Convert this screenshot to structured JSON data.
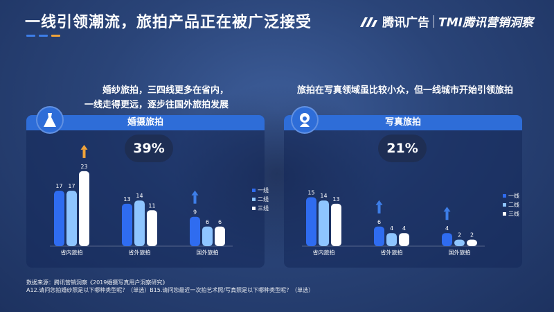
{
  "title": "一线引领潮流，旅拍产品正在被广泛接受",
  "brand": {
    "name": "腾讯广告",
    "sub": "TMI腾讯营销洞察"
  },
  "colors": {
    "tier1": "#2f6cf0",
    "tier2": "#8ec5ff",
    "tier3": "#ffffff",
    "accent_orange": "#f0a33a",
    "accent_blue": "#3d7ee8"
  },
  "left": {
    "headline_line1": "婚纱旅拍，三四线更多在省内，",
    "headline_line2": "一线走得更远，逐步往国外旅拍发展",
    "panel_title": "婚摄旅拍",
    "percent": "39%",
    "icon": "wedding-dress-icon"
  },
  "right": {
    "headline": "旅拍在写真领域虽比较小众，但一线城市开始引领旅拍",
    "panel_title": "写真旅拍",
    "percent": "21%",
    "icon": "portrait-icon"
  },
  "chart_data": [
    {
      "type": "bar",
      "title": "婚摄旅拍",
      "categories": [
        "省内旅拍",
        "省外旅拍",
        "国外旅拍"
      ],
      "series": [
        {
          "name": "一线",
          "values": [
            17,
            13,
            9
          ]
        },
        {
          "name": "二线",
          "values": [
            17,
            14,
            6
          ]
        },
        {
          "name": "三线",
          "values": [
            23,
            11,
            6
          ]
        }
      ],
      "ylim": [
        0,
        25
      ],
      "legend": "right",
      "arrows": [
        {
          "category": "省内旅拍",
          "series": "三线",
          "color": "orange"
        },
        {
          "category": "国外旅拍",
          "series": "一线",
          "color": "blue"
        }
      ]
    },
    {
      "type": "bar",
      "title": "写真旅拍",
      "categories": [
        "省内旅拍",
        "省外旅拍",
        "国外旅拍"
      ],
      "series": [
        {
          "name": "一线",
          "values": [
            15,
            6,
            4
          ]
        },
        {
          "name": "二线",
          "values": [
            14,
            4,
            2
          ]
        },
        {
          "name": "三线",
          "values": [
            13,
            4,
            2
          ]
        }
      ],
      "ylim": [
        0,
        25
      ],
      "legend": "right",
      "arrows": [
        {
          "category": "省外旅拍",
          "series": "一线",
          "color": "blue"
        },
        {
          "category": "国外旅拍",
          "series": "一线",
          "color": "blue"
        }
      ]
    }
  ],
  "footer": {
    "source": "数据来源：腾讯营销洞察《2019婚摄写真用户洞察研究》",
    "questions": "A12.请问您拍婚纱照是以下哪种类型呢？（单选）B15.请问您最近一次拍艺术照/写真照是以下哪种类型呢？（单选）"
  }
}
